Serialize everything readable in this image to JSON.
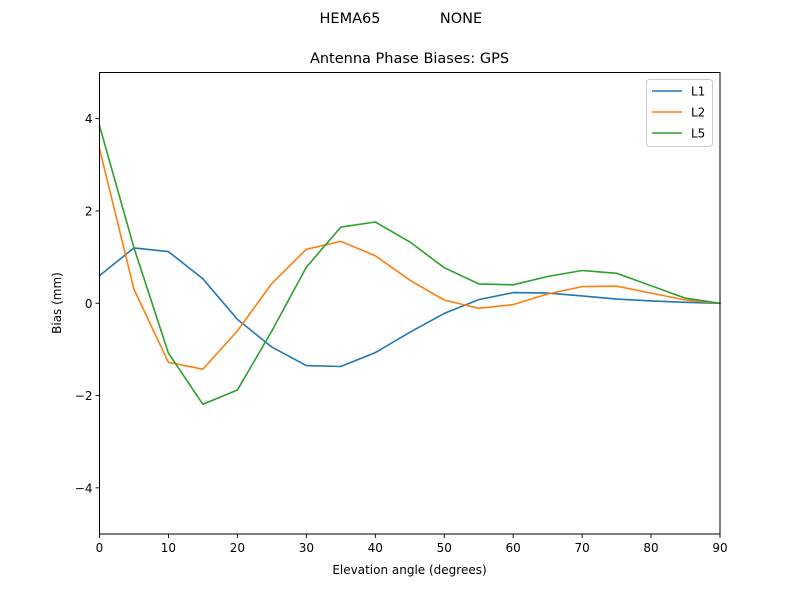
{
  "figure": {
    "suptitle_left": "HEMA65",
    "suptitle_right": "NONE"
  },
  "chart_data": {
    "type": "line",
    "title": "Antenna Phase Biases: GPS",
    "xlabel": "Elevation angle (degrees)",
    "ylabel": "Bias (mm)",
    "xlim": [
      0,
      90
    ],
    "ylim": [
      -5,
      5
    ],
    "xticks": [
      0,
      10,
      20,
      30,
      40,
      50,
      60,
      70,
      80,
      90
    ],
    "yticks": [
      -4,
      -2,
      0,
      2,
      4
    ],
    "ytick_labels": [
      "−4",
      "−2",
      "0",
      "2",
      "4"
    ],
    "grid": false,
    "legend_position": "upper right",
    "x": [
      0,
      5,
      10,
      15,
      20,
      25,
      30,
      35,
      40,
      45,
      50,
      55,
      60,
      65,
      70,
      75,
      80,
      85,
      90
    ],
    "series": [
      {
        "name": "L1",
        "color": "#1f77b4",
        "values": [
          0.6,
          1.2,
          1.12,
          0.53,
          -0.35,
          -0.95,
          -1.35,
          -1.37,
          -1.07,
          -0.63,
          -0.22,
          0.08,
          0.23,
          0.22,
          0.16,
          0.09,
          0.05,
          0.02,
          0.0
        ]
      },
      {
        "name": "L2",
        "color": "#ff7f0e",
        "values": [
          3.35,
          0.3,
          -1.28,
          -1.43,
          -0.6,
          0.43,
          1.17,
          1.34,
          1.03,
          0.5,
          0.07,
          -0.11,
          -0.03,
          0.2,
          0.36,
          0.37,
          0.22,
          0.07,
          0.0
        ]
      },
      {
        "name": "L5",
        "color": "#2ca02c",
        "values": [
          3.85,
          1.2,
          -1.08,
          -2.19,
          -1.88,
          -0.6,
          0.78,
          1.65,
          1.76,
          1.33,
          0.77,
          0.42,
          0.4,
          0.58,
          0.71,
          0.65,
          0.38,
          0.11,
          0.0
        ]
      }
    ]
  }
}
